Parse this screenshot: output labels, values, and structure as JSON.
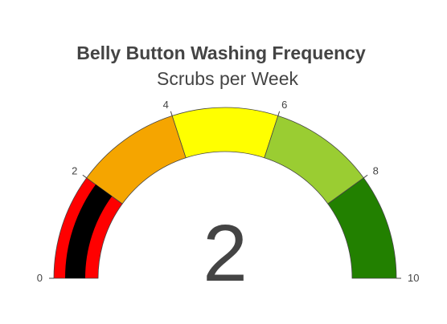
{
  "chart_data": {
    "type": "gauge",
    "title": "Belly Button Washing Frequency",
    "subtitle": "Scrubs per Week",
    "value": 2,
    "value_label": "2",
    "range": [
      0,
      10
    ],
    "ticks": [
      {
        "value": 0,
        "label": "0"
      },
      {
        "value": 2,
        "label": "2"
      },
      {
        "value": 4,
        "label": "4"
      },
      {
        "value": 6,
        "label": "6"
      },
      {
        "value": 8,
        "label": "8"
      },
      {
        "value": 10,
        "label": "10"
      }
    ],
    "steps": [
      {
        "range": [
          0,
          2
        ],
        "color": "#ff0000"
      },
      {
        "range": [
          2,
          4
        ],
        "color": "#f5a500"
      },
      {
        "range": [
          4,
          6
        ],
        "color": "#ffff00"
      },
      {
        "range": [
          6,
          8
        ],
        "color": "#9acd32"
      },
      {
        "range": [
          8,
          10
        ],
        "color": "#228000"
      }
    ],
    "bar_color": "#000000"
  }
}
